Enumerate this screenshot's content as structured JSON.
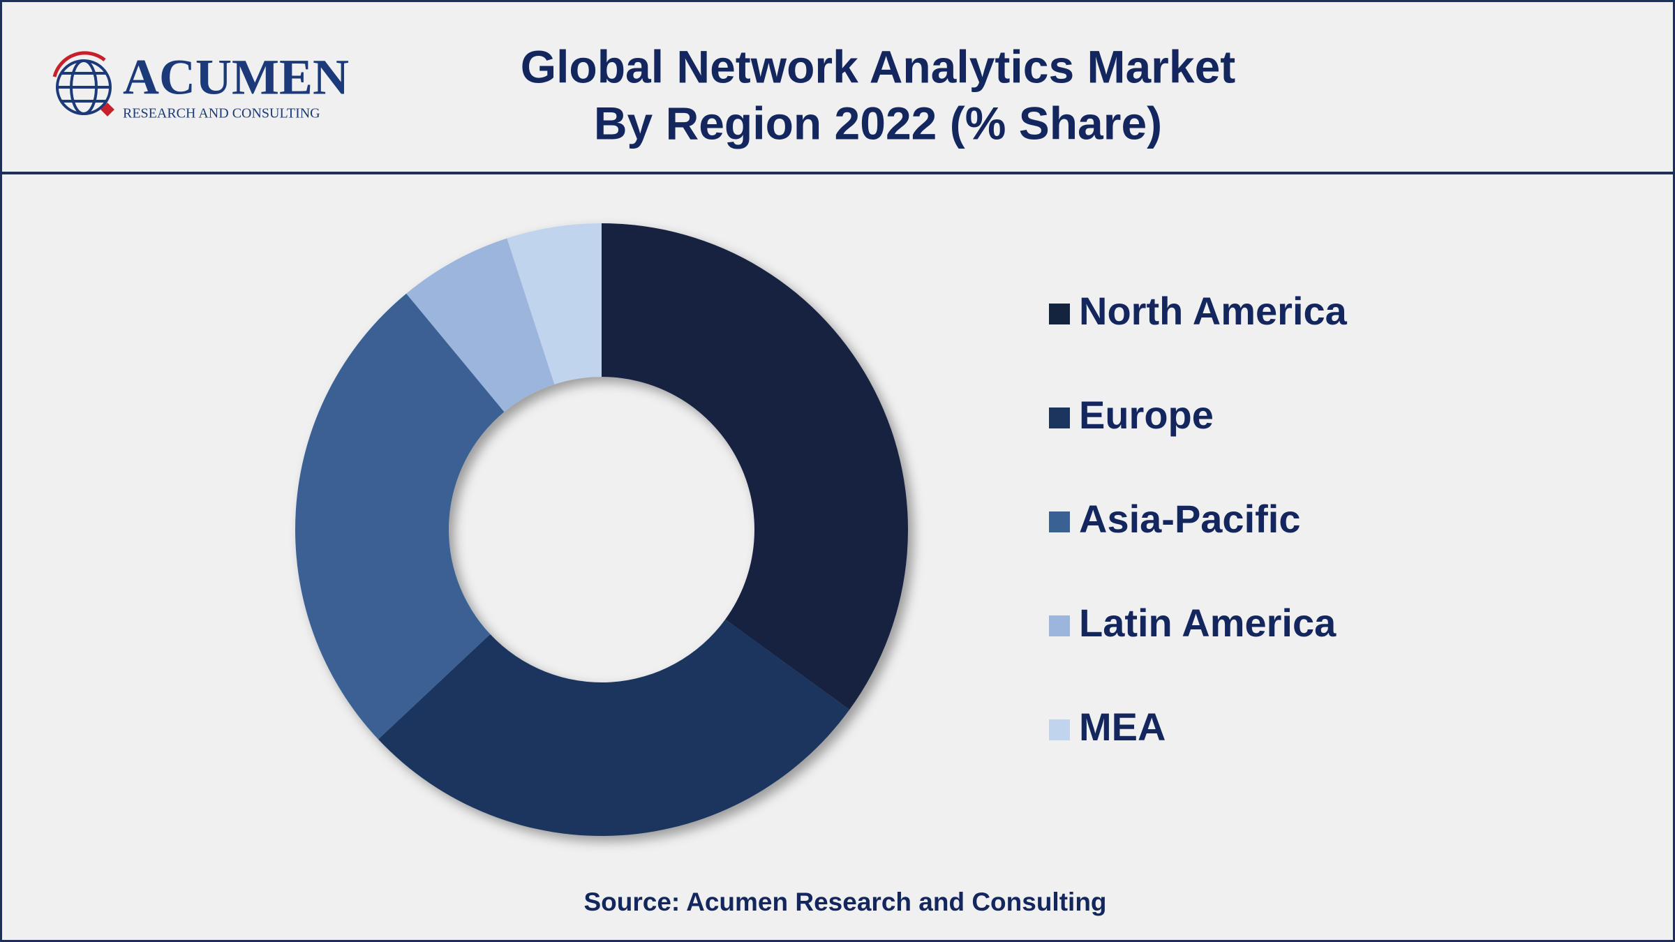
{
  "logo": {
    "name": "ACUMEN",
    "tagline": "RESEARCH AND CONSULTING"
  },
  "chart_data": {
    "type": "donut",
    "title": [
      "Global Network Analytics Market",
      "By Region 2022 (% Share)"
    ],
    "categories": [
      "North America",
      "Europe",
      "Asia-Pacific",
      "Latin America",
      "MEA"
    ],
    "values": [
      35,
      28,
      26,
      6,
      5
    ],
    "colors": [
      "#14243f",
      "#1b355f",
      "#3a6194",
      "#9bb5dc",
      "#c0d4ee"
    ],
    "legend": "right",
    "source": "Source: Acumen Research and Consulting"
  }
}
